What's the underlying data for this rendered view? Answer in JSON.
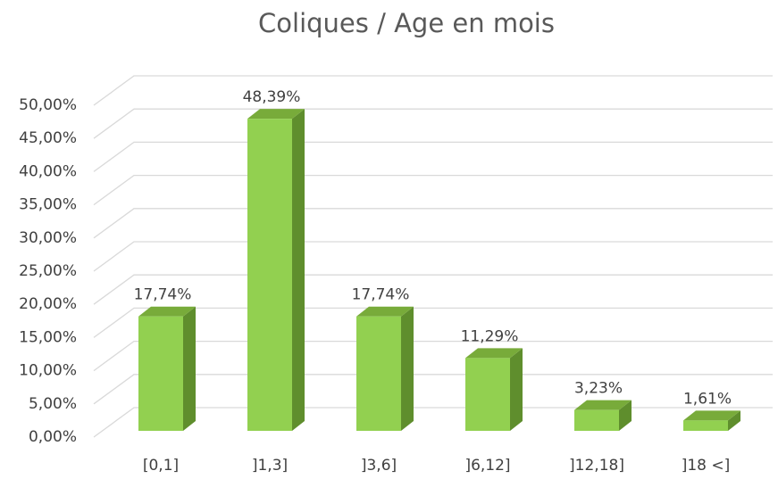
{
  "chart_data": {
    "type": "bar3d",
    "title": "Coliques / Age en mois",
    "categories": [
      "[0,1]",
      "]1,3]",
      "]3,6]",
      "]6,12]",
      "]12,18]",
      "]18 <]"
    ],
    "values": [
      17.74,
      48.39,
      17.74,
      11.29,
      3.23,
      1.61
    ],
    "value_labels": [
      "17,74%",
      "48,39%",
      "17,74%",
      "11,29%",
      "3,23%",
      "1,61%"
    ],
    "color": "#92d050",
    "ylim": [
      0,
      50
    ],
    "yticks": [
      {
        "value": 0,
        "label": "0,00%"
      },
      {
        "value": 5,
        "label": "5,00%"
      },
      {
        "value": 10,
        "label": "10,00%"
      },
      {
        "value": 15,
        "label": "15,00%"
      },
      {
        "value": 20,
        "label": "20,00%"
      },
      {
        "value": 25,
        "label": "25,00%"
      },
      {
        "value": 30,
        "label": "30,00%"
      },
      {
        "value": 35,
        "label": "35,00%"
      },
      {
        "value": 40,
        "label": "40,00%"
      },
      {
        "value": 45,
        "label": "45,00%"
      },
      {
        "value": 50,
        "label": "50,00%"
      }
    ],
    "grid": true
  }
}
